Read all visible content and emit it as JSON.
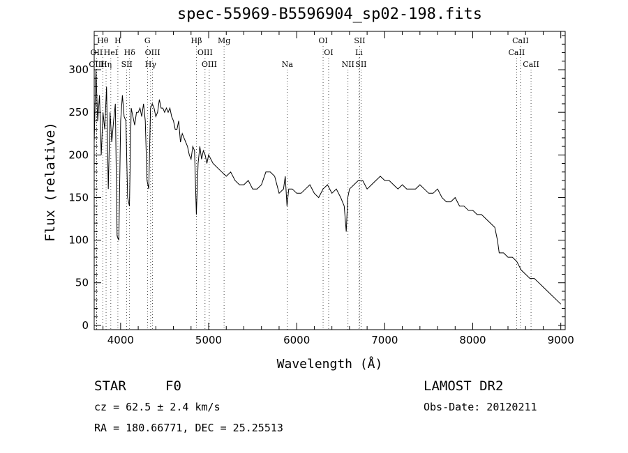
{
  "chart_data": {
    "type": "line",
    "title": "spec-55969-B5596904_sp02-198.fits",
    "xlabel": "Wavelength (Å)",
    "ylabel": "Flux (relative)",
    "xlim": [
      3700,
      9050
    ],
    "ylim": [
      -5,
      345
    ],
    "xticks": [
      4000,
      5000,
      6000,
      7000,
      8000,
      9000
    ],
    "yticks": [
      0,
      50,
      100,
      150,
      200,
      250,
      300
    ],
    "grid": false,
    "series": [
      {
        "x": [
          3700,
          3720,
          3740,
          3760,
          3780,
          3800,
          3820,
          3840,
          3860,
          3880,
          3900,
          3920,
          3940,
          3960,
          3980,
          4000,
          4020,
          4040,
          4060,
          4080,
          4100,
          4120,
          4140,
          4160,
          4180,
          4200,
          4220,
          4240,
          4260,
          4280,
          4300,
          4320,
          4340,
          4360,
          4380,
          4400,
          4420,
          4440,
          4460,
          4480,
          4500,
          4520,
          4540,
          4560,
          4580,
          4600,
          4620,
          4640,
          4660,
          4680,
          4700,
          4720,
          4740,
          4760,
          4780,
          4800,
          4820,
          4840,
          4860,
          4880,
          4900,
          4920,
          4940,
          4960,
          4980,
          5000,
          5050,
          5100,
          5150,
          5200,
          5250,
          5300,
          5350,
          5400,
          5450,
          5500,
          5550,
          5600,
          5650,
          5700,
          5750,
          5800,
          5850,
          5870,
          5890,
          5910,
          5950,
          6000,
          6050,
          6100,
          6150,
          6200,
          6250,
          6300,
          6350,
          6400,
          6450,
          6500,
          6540,
          6563,
          6580,
          6600,
          6650,
          6700,
          6750,
          6800,
          6850,
          6900,
          6950,
          7000,
          7050,
          7100,
          7150,
          7200,
          7250,
          7300,
          7350,
          7400,
          7450,
          7500,
          7550,
          7600,
          7650,
          7700,
          7750,
          7800,
          7850,
          7900,
          7950,
          8000,
          8050,
          8100,
          8150,
          8200,
          8250,
          8280,
          8300,
          8350,
          8400,
          8450,
          8500,
          8550,
          8600,
          8650,
          8700,
          8750,
          8800,
          8850,
          8900,
          8950,
          9000
        ],
        "y": [
          215,
          300,
          240,
          270,
          200,
          250,
          230,
          280,
          160,
          250,
          215,
          240,
          260,
          105,
          100,
          240,
          270,
          245,
          240,
          150,
          140,
          255,
          245,
          235,
          250,
          250,
          255,
          245,
          260,
          240,
          170,
          160,
          255,
          260,
          255,
          245,
          250,
          265,
          255,
          255,
          250,
          255,
          250,
          255,
          245,
          240,
          230,
          230,
          240,
          215,
          225,
          220,
          215,
          210,
          200,
          195,
          210,
          205,
          130,
          190,
          210,
          195,
          205,
          200,
          190,
          200,
          190,
          185,
          180,
          175,
          180,
          170,
          165,
          165,
          170,
          160,
          160,
          165,
          180,
          180,
          175,
          155,
          160,
          175,
          140,
          160,
          160,
          155,
          155,
          160,
          165,
          155,
          150,
          160,
          165,
          155,
          160,
          150,
          140,
          110,
          150,
          160,
          165,
          170,
          170,
          160,
          165,
          170,
          175,
          170,
          170,
          165,
          160,
          165,
          160,
          160,
          160,
          165,
          160,
          155,
          155,
          160,
          150,
          145,
          145,
          150,
          140,
          140,
          135,
          135,
          130,
          130,
          125,
          120,
          115,
          100,
          85,
          85,
          80,
          80,
          75,
          65,
          60,
          55,
          55,
          50,
          45,
          40,
          35,
          30,
          25
        ]
      }
    ],
    "emission_lines": [
      {
        "label": "Hθ",
        "x": 3797,
        "row": 0
      },
      {
        "label": "OII",
        "x": 3727,
        "row": 1
      },
      {
        "label": "OIII",
        "x": 3727,
        "row": 2
      },
      {
        "label": "HeI",
        "x": 3889,
        "row": 1
      },
      {
        "label": "Hη",
        "x": 3835,
        "row": 2
      },
      {
        "label": "H",
        "x": 3969,
        "row": 0
      },
      {
        "label": "Hδ",
        "x": 4102,
        "row": 1
      },
      {
        "label": "SII",
        "x": 4070,
        "row": 2
      },
      {
        "label": "G",
        "x": 4305,
        "row": 0
      },
      {
        "label": "OIII",
        "x": 4363,
        "row": 1
      },
      {
        "label": "Hγ",
        "x": 4341,
        "row": 2
      },
      {
        "label": "Hβ",
        "x": 4861,
        "row": 0
      },
      {
        "label": "OIII",
        "x": 4959,
        "row": 1
      },
      {
        "label": "OIII",
        "x": 5007,
        "row": 2
      },
      {
        "label": "Mg",
        "x": 5175,
        "row": 0
      },
      {
        "label": "Na",
        "x": 5894,
        "row": 2
      },
      {
        "label": "OI",
        "x": 6300,
        "row": 0
      },
      {
        "label": "OI",
        "x": 6363,
        "row": 1
      },
      {
        "label": "NII",
        "x": 6583,
        "row": 2
      },
      {
        "label": "SII",
        "x": 6716,
        "row": 0
      },
      {
        "label": "Li",
        "x": 6707,
        "row": 1
      },
      {
        "label": "SII",
        "x": 6731,
        "row": 2
      },
      {
        "label": "CaII",
        "x": 8542,
        "row": 0
      },
      {
        "label": "CaII",
        "x": 8498,
        "row": 1
      },
      {
        "label": "CaII",
        "x": 8662,
        "row": 2
      }
    ]
  },
  "info": {
    "class_label": "STAR",
    "subclass": "F0",
    "survey": "LAMOST DR2",
    "cz": "cz = 62.5 ± 2.4 km/s",
    "obs_date": "Obs-Date: 20120211",
    "coords": "RA = 180.66771, DEC =  25.25513"
  }
}
